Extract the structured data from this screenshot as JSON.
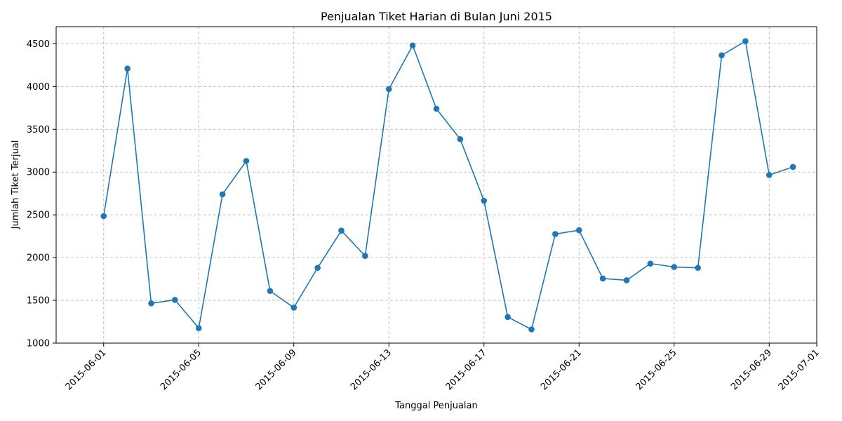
{
  "chart_data": {
    "type": "line",
    "title": "Penjualan Tiket Harian di Bulan Juni 2015",
    "xlabel": "Tanggal Penjualan",
    "ylabel": "Jumlah Tiket Terjual",
    "grid": true,
    "ylim": [
      1000,
      4700
    ],
    "xlim": [
      "2015-05-30",
      "2015-07-01"
    ],
    "y_ticks": [
      1000,
      1500,
      2000,
      2500,
      3000,
      3500,
      4000,
      4500
    ],
    "x_ticks": [
      "2015-06-01",
      "2015-06-05",
      "2015-06-09",
      "2015-06-13",
      "2015-06-17",
      "2015-06-21",
      "2015-06-25",
      "2015-06-29",
      "2015-07-01"
    ],
    "color": "#1f77b4",
    "series": [
      {
        "x": [
          "2015-06-01",
          "2015-06-02",
          "2015-06-03",
          "2015-06-04",
          "2015-06-05",
          "2015-06-06",
          "2015-06-07",
          "2015-06-08",
          "2015-06-09",
          "2015-06-10",
          "2015-06-11",
          "2015-06-12",
          "2015-06-13",
          "2015-06-14",
          "2015-06-15",
          "2015-06-16",
          "2015-06-17",
          "2015-06-18",
          "2015-06-19",
          "2015-06-20",
          "2015-06-21",
          "2015-06-22",
          "2015-06-23",
          "2015-06-24",
          "2015-06-25",
          "2015-06-26",
          "2015-06-27",
          "2015-06-28",
          "2015-06-29",
          "2015-06-30"
        ],
        "values": [
          2485,
          4210,
          1465,
          1505,
          1175,
          2740,
          3130,
          1610,
          1415,
          1880,
          2315,
          2020,
          3970,
          4480,
          3740,
          3385,
          2665,
          1305,
          1160,
          2275,
          2320,
          1755,
          1735,
          1930,
          1890,
          1880,
          4365,
          4530,
          2965,
          3060
        ]
      }
    ]
  }
}
